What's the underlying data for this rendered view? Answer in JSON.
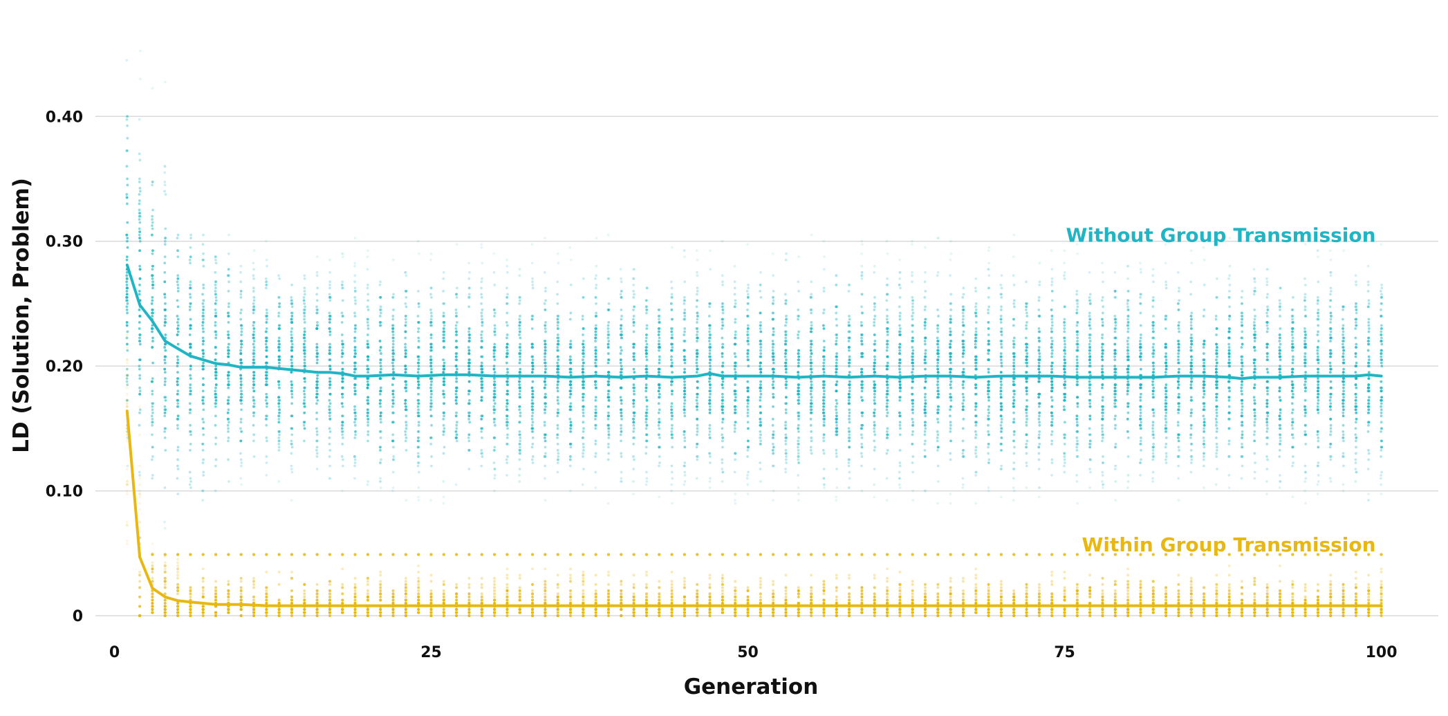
{
  "chart_data": {
    "type": "scatter",
    "title": "",
    "xlabel": "Generation",
    "ylabel": "LD (Solution, Problem)",
    "xlim": [
      -1.5,
      104.5
    ],
    "ylim": [
      0,
      0.46
    ],
    "grid": "horizontal",
    "x_ticks": [
      {
        "value": 0,
        "label": "0"
      },
      {
        "value": 25,
        "label": "25"
      },
      {
        "value": 50,
        "label": "50"
      },
      {
        "value": 75,
        "label": "75"
      },
      {
        "value": 100,
        "label": "100"
      }
    ],
    "y_ticks": [
      {
        "value": 0,
        "label": "0"
      },
      {
        "value": 0.1,
        "label": "0.10"
      },
      {
        "value": 0.2,
        "label": "0.20"
      },
      {
        "value": 0.3,
        "label": "0.30"
      },
      {
        "value": 0.4,
        "label": "0.40"
      }
    ],
    "series": [
      {
        "name": "Without Group Transmission",
        "color": "#1fb5c4",
        "label_anchor": {
          "x": 100,
          "y": 0.305
        },
        "mean_line": [
          [
            1,
            0.281
          ],
          [
            2,
            0.249
          ],
          [
            3,
            0.236
          ],
          [
            4,
            0.22
          ],
          [
            5,
            0.214
          ],
          [
            6,
            0.208
          ],
          [
            7,
            0.205
          ],
          [
            8,
            0.202
          ],
          [
            9,
            0.201
          ],
          [
            10,
            0.199
          ],
          [
            11,
            0.199
          ],
          [
            12,
            0.199
          ],
          [
            13,
            0.198
          ],
          [
            14,
            0.197
          ],
          [
            15,
            0.196
          ],
          [
            16,
            0.195
          ],
          [
            17,
            0.195
          ],
          [
            18,
            0.194
          ],
          [
            19,
            0.192
          ],
          [
            20,
            0.192
          ],
          [
            22,
            0.193
          ],
          [
            24,
            0.192
          ],
          [
            26,
            0.193
          ],
          [
            28,
            0.193
          ],
          [
            30,
            0.192
          ],
          [
            32,
            0.192
          ],
          [
            34,
            0.192
          ],
          [
            36,
            0.191
          ],
          [
            38,
            0.192
          ],
          [
            40,
            0.191
          ],
          [
            42,
            0.192
          ],
          [
            44,
            0.191
          ],
          [
            46,
            0.192
          ],
          [
            47,
            0.194
          ],
          [
            48,
            0.192
          ],
          [
            50,
            0.192
          ],
          [
            52,
            0.192
          ],
          [
            54,
            0.191
          ],
          [
            56,
            0.192
          ],
          [
            58,
            0.191
          ],
          [
            60,
            0.192
          ],
          [
            62,
            0.191
          ],
          [
            64,
            0.192
          ],
          [
            66,
            0.192
          ],
          [
            68,
            0.191
          ],
          [
            70,
            0.192
          ],
          [
            72,
            0.192
          ],
          [
            74,
            0.192
          ],
          [
            76,
            0.191
          ],
          [
            78,
            0.191
          ],
          [
            80,
            0.191
          ],
          [
            82,
            0.191
          ],
          [
            84,
            0.192
          ],
          [
            86,
            0.192
          ],
          [
            88,
            0.191
          ],
          [
            89,
            0.19
          ],
          [
            90,
            0.191
          ],
          [
            92,
            0.191
          ],
          [
            94,
            0.192
          ],
          [
            96,
            0.192
          ],
          [
            98,
            0.192
          ],
          [
            99,
            0.193
          ],
          [
            100,
            0.192
          ]
        ]
      },
      {
        "name": "Within Group Transmission",
        "color": "#e8b711",
        "label_anchor": {
          "x": 100,
          "y": 0.057
        },
        "mean_line": [
          [
            1,
            0.164
          ],
          [
            2,
            0.047
          ],
          [
            3,
            0.022
          ],
          [
            4,
            0.015
          ],
          [
            5,
            0.012
          ],
          [
            6,
            0.011
          ],
          [
            7,
            0.01
          ],
          [
            8,
            0.009
          ],
          [
            9,
            0.009
          ],
          [
            10,
            0.009
          ],
          [
            12,
            0.008
          ],
          [
            14,
            0.008
          ],
          [
            16,
            0.008
          ],
          [
            18,
            0.008
          ],
          [
            20,
            0.008
          ],
          [
            25,
            0.008
          ],
          [
            30,
            0.008
          ],
          [
            40,
            0.008
          ],
          [
            50,
            0.008
          ],
          [
            60,
            0.008
          ],
          [
            70,
            0.008
          ],
          [
            80,
            0.008
          ],
          [
            90,
            0.008
          ],
          [
            100,
            0.008
          ]
        ]
      }
    ]
  }
}
